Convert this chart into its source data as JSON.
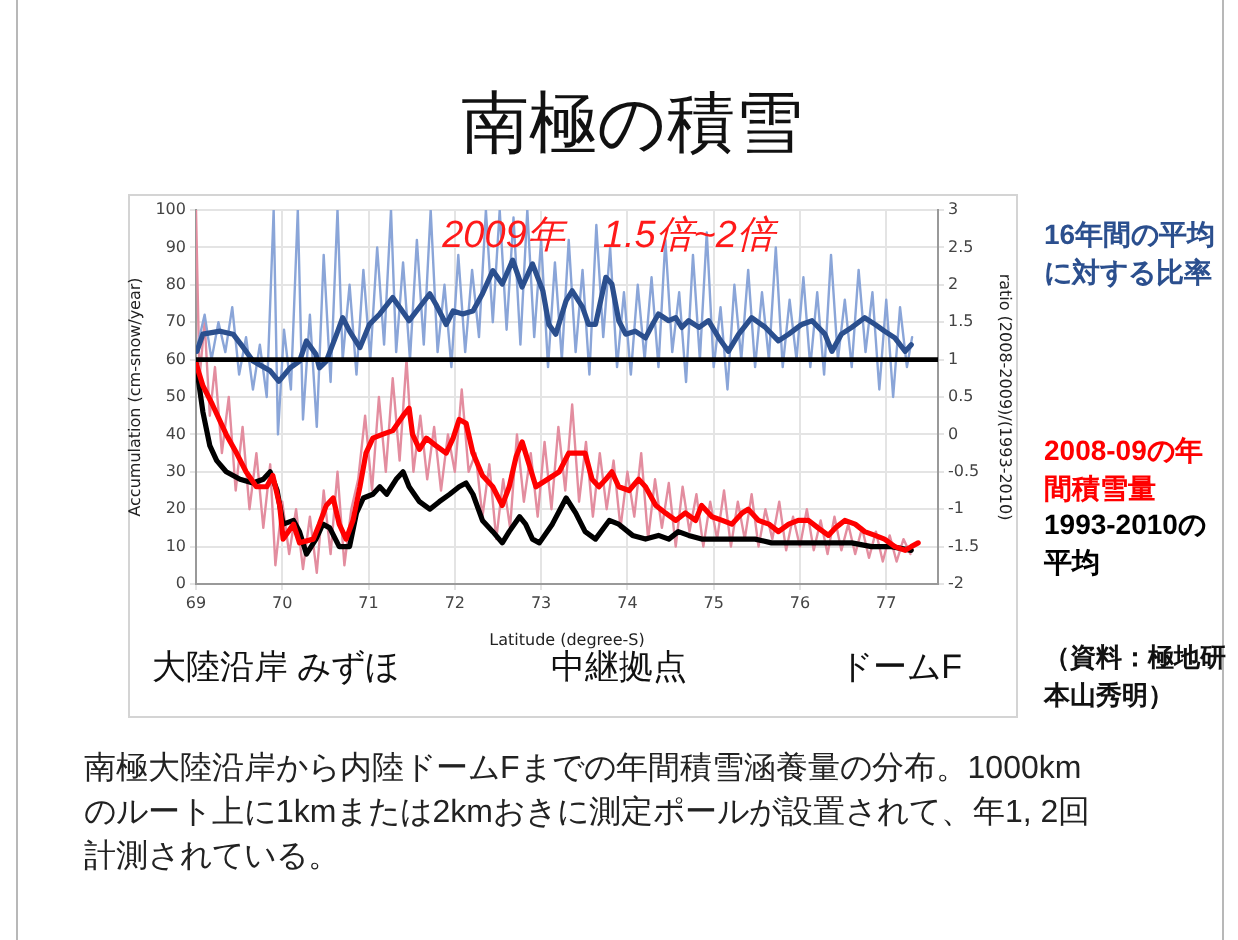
{
  "chart_data": {
    "type": "line",
    "title": "南極の積雪",
    "xlabel": "Latitude (degree-S)",
    "ylabel": "Accumulation (cm-snow/year)",
    "y2label": "ratio (2008-2009)/(1993-2010)",
    "xlim": [
      69,
      77.6
    ],
    "xticks": [
      69,
      70,
      71,
      72,
      73,
      74,
      75,
      76,
      77
    ],
    "ylim": [
      0,
      100
    ],
    "yticks": [
      0,
      10,
      20,
      30,
      40,
      50,
      60,
      70,
      80,
      90,
      100
    ],
    "y2lim": [
      -2,
      3
    ],
    "y2ticks": [
      -2,
      -1.5,
      -1,
      -0.5,
      0,
      0.5,
      1,
      1.5,
      2,
      2.5,
      3
    ],
    "grid": true,
    "legend": "right",
    "ref_lines": [
      {
        "axis": "y2",
        "value": 1,
        "color": "#000000"
      }
    ],
    "annotations": [
      "2009年　1.5倍~2倍",
      "大陸沿岸 みずほ",
      "中継拠点",
      "ドームF",
      "（資料：極地研本山秀明）",
      "南極大陸沿岸から内陸ドームFまでの年間積雪涵養量の分布。1000kmのルート上に1kmまたは2kmおきに測定ポールが設置されて、年1, 2回計測されている。"
    ],
    "series": [
      {
        "name": "16年間の平均に対する比率",
        "color": "#2b4f8e",
        "axis": "y2",
        "x": [
          69.01,
          69.08,
          69.28,
          69.43,
          69.55,
          69.66,
          69.86,
          69.96,
          70.09,
          70.2,
          70.28,
          70.39,
          70.43,
          70.51,
          70.63,
          70.7,
          70.78,
          70.9,
          71.01,
          71.13,
          71.28,
          71.36,
          71.47,
          71.59,
          71.71,
          71.78,
          71.9,
          71.98,
          72.09,
          72.21,
          72.32,
          72.44,
          72.55,
          72.67,
          72.78,
          72.9,
          73.02,
          73.09,
          73.17,
          73.29,
          73.36,
          73.48,
          73.55,
          73.63,
          73.75,
          73.82,
          73.9,
          73.98,
          74.09,
          74.21,
          74.29,
          74.36,
          74.48,
          74.56,
          74.63,
          74.71,
          74.83,
          74.94,
          75.06,
          75.17,
          75.29,
          75.44,
          75.6,
          75.75,
          75.87,
          76.02,
          76.14,
          76.29,
          76.37,
          76.48,
          76.6,
          76.75,
          76.87,
          76.98,
          77.1,
          77.22,
          77.29
        ],
        "values": [
          1.11,
          1.34,
          1.38,
          1.34,
          1.16,
          0.98,
          0.85,
          0.71,
          0.89,
          0.98,
          1.25,
          1.07,
          0.89,
          0.98,
          1.34,
          1.56,
          1.38,
          1.16,
          1.47,
          1.61,
          1.83,
          1.7,
          1.52,
          1.7,
          1.88,
          1.74,
          1.47,
          1.65,
          1.61,
          1.65,
          1.88,
          2.19,
          2.01,
          2.33,
          1.97,
          2.28,
          1.92,
          1.47,
          1.34,
          1.79,
          1.92,
          1.7,
          1.47,
          1.47,
          2.1,
          2.01,
          1.52,
          1.34,
          1.38,
          1.29,
          1.47,
          1.61,
          1.52,
          1.56,
          1.43,
          1.52,
          1.43,
          1.52,
          1.29,
          1.11,
          1.34,
          1.56,
          1.43,
          1.25,
          1.34,
          1.47,
          1.52,
          1.34,
          1.11,
          1.34,
          1.43,
          1.56,
          1.47,
          1.38,
          1.29,
          1.11,
          1.2
        ]
      },
      {
        "name": "2008-09の年間積雪量",
        "color": "#ff0000",
        "x": [
          69,
          69.08,
          69.19,
          69.35,
          69.47,
          69.58,
          69.7,
          69.82,
          69.89,
          69.97,
          70.01,
          70.13,
          70.2,
          70.36,
          70.43,
          70.51,
          70.59,
          70.66,
          70.74,
          70.82,
          70.9,
          70.97,
          71.05,
          71.16,
          71.28,
          71.4,
          71.47,
          71.51,
          71.59,
          71.67,
          71.78,
          71.9,
          71.98,
          72.05,
          72.13,
          72.21,
          72.32,
          72.44,
          72.55,
          72.63,
          72.71,
          72.78,
          72.86,
          72.94,
          73.21,
          73.32,
          73.4,
          73.51,
          73.59,
          73.67,
          73.75,
          73.82,
          73.9,
          74.02,
          74.13,
          74.21,
          74.33,
          74.44,
          74.56,
          74.67,
          74.79,
          74.86,
          74.98,
          75.1,
          75.21,
          75.33,
          75.4,
          75.52,
          75.64,
          75.75,
          75.87,
          75.98,
          76.1,
          76.21,
          76.33,
          76.41,
          76.52,
          76.64,
          76.75,
          76.87,
          76.98,
          77.1,
          77.22,
          77.29,
          77.37
        ],
        "values": [
          59,
          53,
          48,
          40,
          35,
          30,
          26,
          26,
          29,
          21,
          12,
          16,
          11,
          12,
          16,
          21,
          23,
          16,
          12,
          17,
          26,
          35,
          39,
          40,
          41,
          45,
          47,
          40,
          36,
          39,
          37,
          35,
          39,
          44,
          43,
          35,
          29,
          26,
          21,
          26,
          34,
          38,
          32,
          26,
          30,
          35,
          35,
          35,
          28,
          26,
          28,
          30,
          26,
          25,
          28,
          26,
          21,
          19,
          17,
          19,
          17,
          21,
          18,
          17,
          16,
          19,
          20,
          17,
          16,
          14,
          16,
          17,
          17,
          15,
          13,
          15,
          17,
          16,
          14,
          13,
          12,
          10,
          9,
          10,
          11
        ]
      },
      {
        "name": "1993-2010の平均",
        "color": "#000000",
        "x": [
          69,
          69.08,
          69.16,
          69.24,
          69.35,
          69.51,
          69.66,
          69.78,
          69.86,
          69.94,
          70.01,
          70.13,
          70.2,
          70.28,
          70.39,
          70.47,
          70.55,
          70.66,
          70.78,
          70.86,
          70.94,
          71.05,
          71.13,
          71.21,
          71.32,
          71.4,
          71.47,
          71.59,
          71.71,
          71.82,
          71.94,
          72.05,
          72.13,
          72.21,
          72.32,
          72.44,
          72.55,
          72.63,
          72.75,
          72.82,
          72.9,
          72.98,
          73.13,
          73.29,
          73.4,
          73.51,
          73.63,
          73.79,
          73.9,
          74.06,
          74.21,
          74.36,
          74.48,
          74.59,
          74.71,
          74.86,
          75.02,
          75.17,
          75.33,
          75.48,
          75.67,
          75.9,
          76.14,
          76.37,
          76.6,
          76.83,
          77.06,
          77.29
        ],
        "values": [
          59,
          46,
          37,
          33,
          30,
          28,
          27,
          28,
          30,
          25,
          16,
          17,
          14,
          8,
          12,
          16,
          15,
          10,
          10,
          19,
          23,
          24,
          26,
          24,
          28,
          30,
          26,
          22,
          20,
          22,
          24,
          26,
          27,
          24,
          17,
          14,
          11,
          14,
          18,
          16,
          12,
          11,
          16,
          23,
          19,
          14,
          12,
          17,
          16,
          13,
          12,
          13,
          12,
          14,
          13,
          12,
          12,
          12,
          12,
          12,
          11,
          11,
          11,
          11,
          11,
          10,
          10,
          9
        ]
      },
      {
        "color": "#8aa5d8",
        "axis": "y2",
        "x": [
          69.02,
          69.1,
          69.18,
          69.26,
          69.34,
          69.42,
          69.5,
          69.58,
          69.66,
          69.74,
          69.82,
          69.9,
          69.95,
          70.02,
          70.1,
          70.18,
          70.24,
          70.32,
          70.4,
          70.48,
          70.56,
          70.64,
          70.7,
          70.78,
          70.86,
          70.94,
          71.02,
          71.1,
          71.18,
          71.26,
          71.32,
          71.4,
          71.48,
          71.56,
          71.64,
          71.72,
          71.8,
          71.88,
          71.96,
          72.04,
          72.12,
          72.2,
          72.28,
          72.36,
          72.44,
          72.52,
          72.6,
          72.68,
          72.76,
          72.84,
          72.92,
          73,
          73.08,
          73.16,
          73.24,
          73.32,
          73.4,
          73.48,
          73.56,
          73.64,
          73.72,
          73.8,
          73.88,
          73.96,
          74.04,
          74.12,
          74.2,
          74.28,
          74.36,
          74.44,
          74.52,
          74.6,
          74.68,
          74.76,
          74.84,
          74.92,
          75,
          75.08,
          75.16,
          75.24,
          75.32,
          75.4,
          75.48,
          75.56,
          75.64,
          75.72,
          75.8,
          75.88,
          75.96,
          76.04,
          76.12,
          76.2,
          76.28,
          76.36,
          76.44,
          76.52,
          76.6,
          76.68,
          76.76,
          76.84,
          76.92,
          77,
          77.08,
          77.16,
          77.24,
          77.3
        ],
        "values": [
          1.2,
          1.6,
          1,
          1.5,
          1.1,
          1.7,
          0.8,
          1.3,
          0.6,
          1.2,
          0.5,
          3,
          0,
          1.4,
          0.6,
          3,
          0.2,
          1.6,
          0.1,
          2.4,
          0.7,
          3,
          1,
          2,
          0.8,
          2.2,
          1,
          2.5,
          1.2,
          3,
          1.1,
          2.3,
          1,
          2.6,
          1.2,
          3,
          1.1,
          2,
          0.9,
          2.4,
          1.1,
          2.2,
          1.3,
          3,
          1.5,
          3,
          1.4,
          2.9,
          1.2,
          3,
          1.3,
          2.6,
          0.9,
          2.3,
          1,
          2.6,
          1.1,
          2.2,
          0.8,
          2.8,
          1.3,
          2.5,
          0.9,
          1.9,
          0.8,
          2,
          1,
          2.1,
          0.9,
          2.6,
          1.1,
          1.9,
          0.7,
          2.4,
          1,
          2.7,
          0.9,
          1.7,
          0.6,
          2,
          1,
          2.2,
          0.9,
          1.9,
          1,
          2.5,
          0.9,
          1.8,
          1,
          2.1,
          0.9,
          1.9,
          0.8,
          2.4,
          1,
          1.8,
          0.9,
          2.2,
          1.1,
          1.9,
          0.6,
          1.8,
          0.5,
          1.7,
          0.9,
          1.3
        ]
      },
      {
        "color": "#e38d9f",
        "x": [
          69,
          69.04,
          69.1,
          69.16,
          69.22,
          69.3,
          69.38,
          69.46,
          69.54,
          69.62,
          69.7,
          69.78,
          69.86,
          69.92,
          70,
          70.08,
          70.16,
          70.24,
          70.32,
          70.4,
          70.48,
          70.56,
          70.64,
          70.72,
          70.8,
          70.88,
          70.96,
          71.04,
          71.12,
          71.2,
          71.28,
          71.36,
          71.44,
          71.52,
          71.6,
          71.68,
          71.76,
          71.84,
          71.92,
          72,
          72.08,
          72.16,
          72.24,
          72.32,
          72.4,
          72.48,
          72.56,
          72.64,
          72.72,
          72.8,
          72.88,
          72.96,
          73.04,
          73.12,
          73.2,
          73.28,
          73.36,
          73.44,
          73.52,
          73.6,
          73.68,
          73.76,
          73.84,
          73.92,
          74,
          74.08,
          74.16,
          74.24,
          74.32,
          74.4,
          74.48,
          74.56,
          74.64,
          74.72,
          74.8,
          74.88,
          74.96,
          75.04,
          75.12,
          75.2,
          75.28,
          75.36,
          75.44,
          75.52,
          75.6,
          75.68,
          75.76,
          75.84,
          75.92,
          76,
          76.08,
          76.16,
          76.24,
          76.32,
          76.4,
          76.48,
          76.56,
          76.64,
          76.72,
          76.8,
          76.88,
          76.96,
          77.04,
          77.12,
          77.2,
          77.28
        ],
        "values": [
          100,
          55,
          70,
          45,
          58,
          35,
          50,
          25,
          42,
          20,
          35,
          15,
          32,
          5,
          22,
          8,
          20,
          4,
          18,
          3,
          25,
          8,
          30,
          5,
          20,
          28,
          45,
          25,
          50,
          30,
          55,
          33,
          60,
          30,
          45,
          28,
          42,
          25,
          40,
          30,
          52,
          30,
          35,
          18,
          32,
          12,
          28,
          15,
          40,
          22,
          35,
          18,
          38,
          20,
          42,
          25,
          48,
          22,
          38,
          18,
          35,
          20,
          33,
          15,
          30,
          18,
          35,
          12,
          28,
          15,
          27,
          10,
          26,
          14,
          24,
          10,
          22,
          12,
          25,
          10,
          22,
          12,
          24,
          10,
          20,
          12,
          22,
          9,
          18,
          10,
          20,
          9,
          17,
          8,
          18,
          9,
          16,
          8,
          15,
          7,
          14,
          6,
          13,
          6,
          12,
          8
        ]
      }
    ]
  }
}
